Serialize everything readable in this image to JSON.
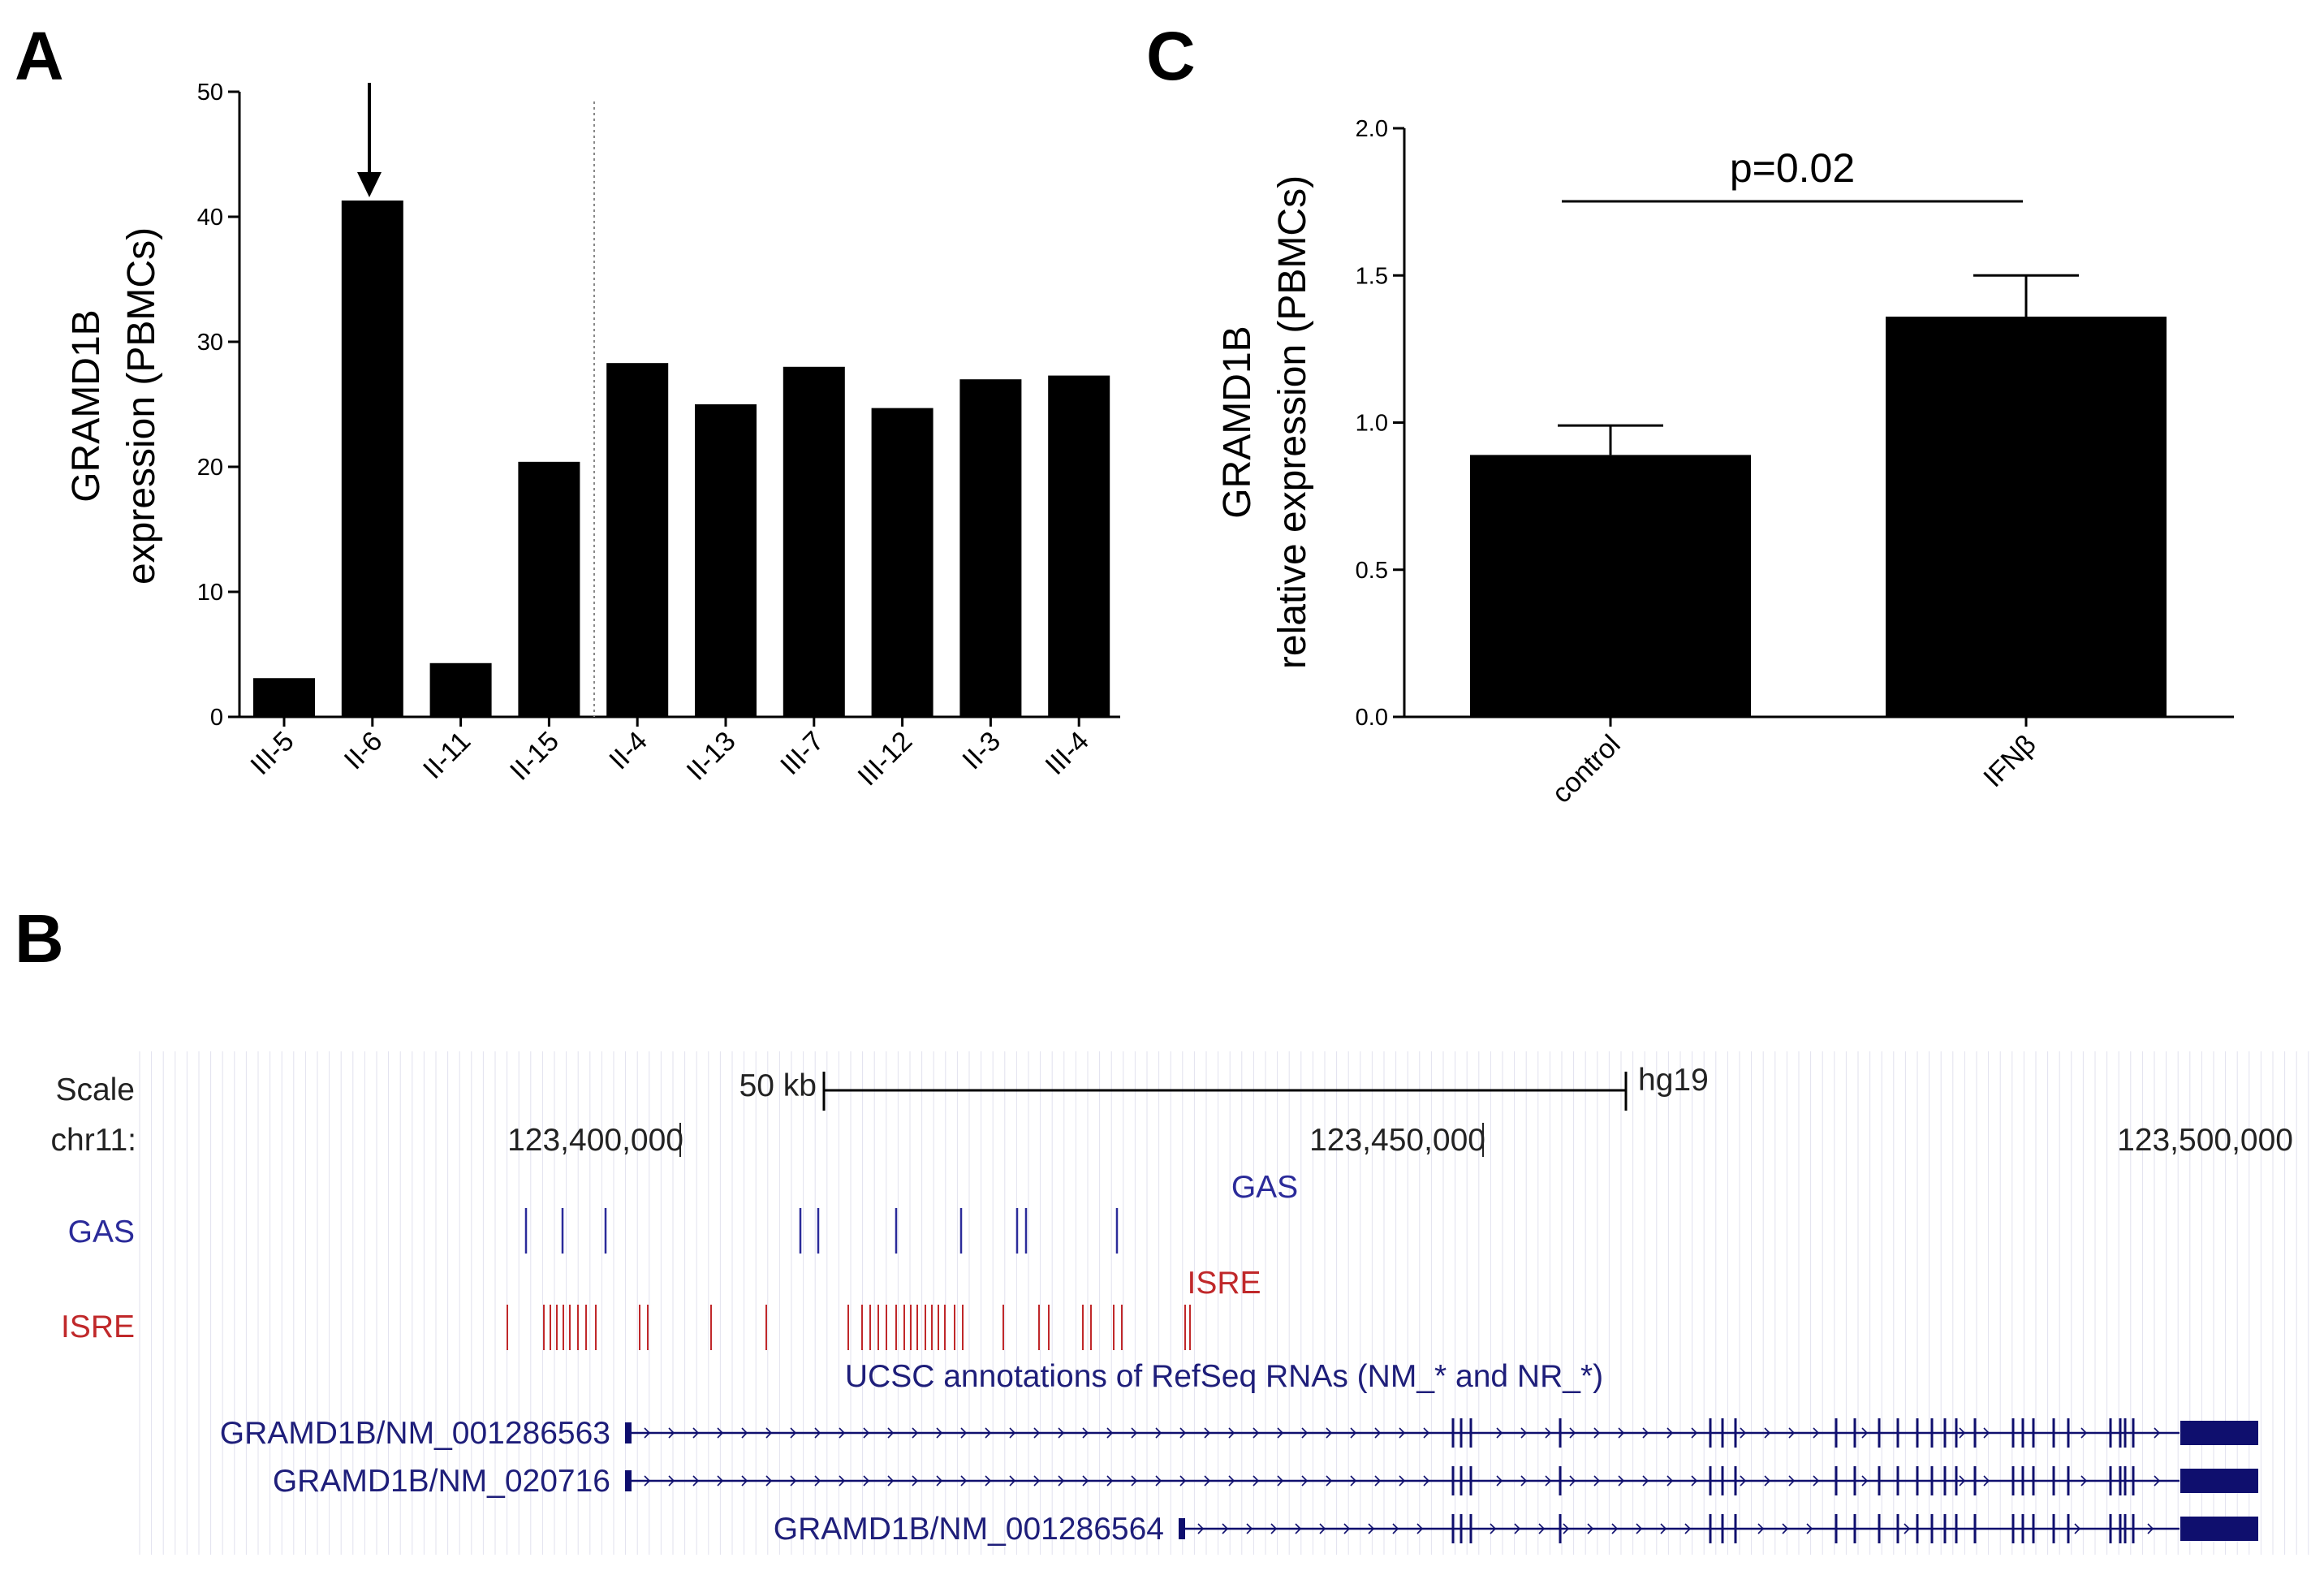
{
  "panels": {
    "a": "A",
    "b": "B",
    "c": "C"
  },
  "chart_data": [
    {
      "type": "bar",
      "panel": "A",
      "ylabel_line1": "GRAMD1B",
      "ylabel_line2": "expression (PBMCs)",
      "ylim": [
        0,
        50
      ],
      "yticks": [
        0,
        10,
        20,
        30,
        40,
        50
      ],
      "categories": [
        "III-5",
        "II-6",
        "II-11",
        "II-15",
        "II-4",
        "II-13",
        "III-7",
        "III-12",
        "II-3",
        "III-4"
      ],
      "values": [
        3.1,
        41.3,
        4.3,
        20.4,
        28.3,
        25.0,
        28.0,
        24.7,
        27.0,
        27.3
      ],
      "arrow_on": "II-6",
      "divider_after": "II-15",
      "color": "#000000"
    },
    {
      "type": "bar",
      "panel": "C",
      "ylabel_line1": "GRAMD1B",
      "ylabel_line2": "relative expression (PBMCs)",
      "ylim": [
        0,
        2.0
      ],
      "yticks": [
        "0.0",
        "0.5",
        "1.0",
        "1.5",
        "2.0"
      ],
      "categories": [
        "control",
        "IFNβ"
      ],
      "values": [
        0.89,
        1.36
      ],
      "errors": [
        0.1,
        0.14
      ],
      "pvalue": "p=0.02",
      "color": "#000000"
    }
  ],
  "browser": {
    "scale_label": "Scale",
    "scale_bar_label": "50 kb",
    "assembly": "hg19",
    "chrom_label": "chr11:",
    "positions": [
      "123,400,000",
      "123,450,000",
      "123,500,000"
    ],
    "gas_label": "GAS",
    "isre_label": "ISRE",
    "gas_center_label": "GAS",
    "isre_center_label": "ISRE",
    "refseq_title": "UCSC annotations of RefSeq RNAs (NM_* and NR_*)",
    "transcripts": [
      "GRAMD1B/NM_001286563",
      "GRAMD1B/NM_020716",
      "GRAMD1B/NM_001286564"
    ],
    "gas_color": "#2b2b9a",
    "isre_color": "#c0282a",
    "gene_color": "#0f0f6e"
  }
}
